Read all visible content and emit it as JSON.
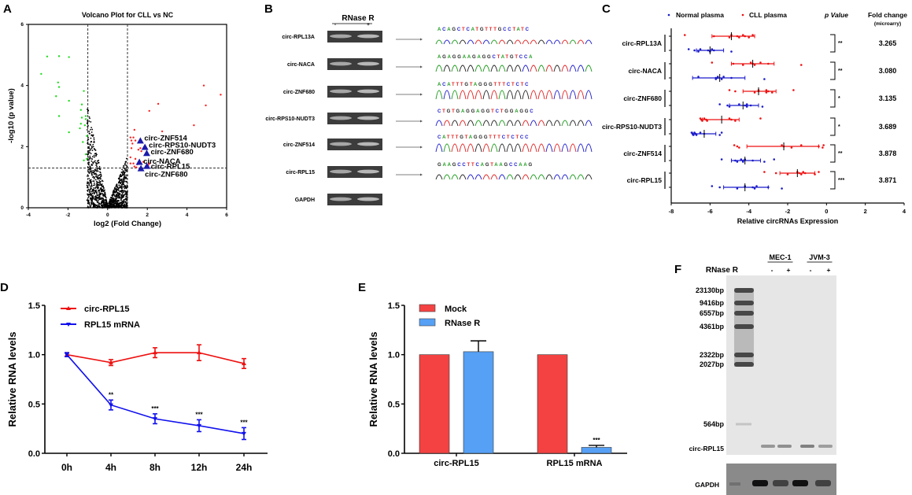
{
  "panels": {
    "A": "A",
    "B": "B",
    "C": "C",
    "D": "D",
    "E": "E",
    "F": "F"
  },
  "chart_data": [
    {
      "id": "A",
      "type": "scatter",
      "title": "Volcano Plot for CLL vs NC",
      "xlabel": "log2 (Fold Change)",
      "ylabel": "-log10 (p value)",
      "xlim": [
        -4,
        6
      ],
      "ylim": [
        0,
        6
      ],
      "xticks": [
        "-4",
        "-2",
        "0",
        "2",
        "4",
        "6"
      ],
      "yticks": [
        "0",
        "2",
        "4",
        "6"
      ],
      "thresholds": {
        "fold_change_log2": [
          -1,
          1
        ],
        "neg_log10_p": 1.3
      },
      "down_points": [
        [
          -3.05,
          4.95
        ],
        [
          -2.45,
          4.96
        ],
        [
          -1.95,
          4.93
        ],
        [
          -3.35,
          4.38
        ],
        [
          -2.5,
          4.1
        ],
        [
          -2.45,
          3.95
        ],
        [
          -2.6,
          3.65
        ],
        [
          -1.95,
          3.5
        ],
        [
          -2.45,
          3.0
        ],
        [
          -1.95,
          2.47
        ],
        [
          -1.2,
          3.82
        ],
        [
          -1.3,
          3.38
        ],
        [
          -1.35,
          3.2
        ],
        [
          -1.1,
          3.0
        ],
        [
          -1.3,
          2.95
        ],
        [
          -1.1,
          2.9
        ],
        [
          -1.35,
          2.75
        ],
        [
          -1.4,
          2.6
        ],
        [
          -1.15,
          2.7
        ],
        [
          -1.25,
          2.15
        ],
        [
          -1.05,
          2.35
        ],
        [
          -1.1,
          1.75
        ],
        [
          -1.2,
          1.55
        ],
        [
          -1.05,
          1.6
        ]
      ],
      "up_points": [
        [
          4.85,
          4.0
        ],
        [
          5.7,
          3.7
        ],
        [
          4.95,
          3.35
        ],
        [
          2.55,
          3.4
        ],
        [
          2.1,
          3.17
        ],
        [
          4.35,
          2.7
        ],
        [
          2.75,
          2.5
        ],
        [
          1.35,
          2.55
        ],
        [
          1.15,
          2.3
        ],
        [
          1.3,
          2.3
        ],
        [
          1.2,
          2.2
        ],
        [
          1.4,
          2.2
        ],
        [
          1.25,
          2.1
        ],
        [
          1.2,
          1.95
        ],
        [
          1.65,
          1.95
        ],
        [
          1.55,
          1.9
        ],
        [
          1.7,
          1.85
        ],
        [
          1.15,
          1.65
        ],
        [
          1.4,
          1.6
        ],
        [
          1.15,
          1.45
        ],
        [
          1.3,
          1.45
        ],
        [
          1.5,
          1.42
        ],
        [
          1.35,
          1.35
        ],
        [
          1.45,
          1.32
        ],
        [
          1.65,
          1.45
        ],
        [
          1.8,
          1.5
        ],
        [
          2.1,
          1.45
        ],
        [
          2.05,
          1.4
        ]
      ],
      "highlighted": [
        {
          "label": "circ-ZNF514",
          "x": 1.65,
          "y": 2.18
        },
        {
          "label": "circ-RPS10-NUDT3",
          "x": 1.88,
          "y": 1.97
        },
        {
          "label": "circ-ZNF680",
          "x": 1.97,
          "y": 1.77
        },
        {
          "label": "circ-NACA",
          "x": 1.6,
          "y": 1.48
        },
        {
          "label": "circ-RPL15",
          "x": 1.98,
          "y": 1.35
        },
        {
          "label": "circ-ZNF680",
          "x": 1.68,
          "y": 1.27
        }
      ],
      "colors": {
        "down": "#22dd22",
        "up": "#ff2020",
        "ns": "#000000",
        "highlight": "#1a1aaa"
      }
    },
    {
      "id": "C",
      "type": "scatter",
      "xlabel": "Relative circRNAs Expression",
      "xlim": [
        -8,
        4
      ],
      "xticks": [
        "-8",
        "-6",
        "-4",
        "-2",
        "0",
        "2",
        "4"
      ],
      "legend": [
        {
          "name": "Normal plasma",
          "color": "#1a1acc"
        },
        {
          "name": "CLL plasma",
          "color": "#ee1111"
        }
      ],
      "header_p": "p Value",
      "header_fc": "Fold change",
      "header_fc_sub": "(microarry)",
      "rows": [
        {
          "label": "circ-RPL13A",
          "p": "**",
          "fc": "3.265",
          "cll": {
            "mean": -4.9,
            "lo": -5.9,
            "hi": -3.7,
            "points": [
              -7.3,
              -5.8,
              -5.0,
              -4.9,
              -4.6,
              -4.5,
              -4.3,
              -4.2,
              -4.0,
              -3.8
            ]
          },
          "normal": {
            "mean": -6.0,
            "lo": -6.7,
            "hi": -5.3,
            "points": [
              -7.1,
              -6.8,
              -6.6,
              -6.5,
              -6.1,
              -6.0,
              -5.9,
              -5.8,
              -4.9
            ]
          }
        },
        {
          "label": "circ-NACA",
          "p": "**",
          "fc": "3.080",
          "cll": {
            "mean": -3.8,
            "lo": -4.9,
            "hi": -2.7,
            "points": [
              -5.9,
              -4.8,
              -4.3,
              -3.9,
              -3.8,
              -3.7,
              -3.4,
              -3.0,
              -1.3
            ]
          },
          "normal": {
            "mean": -5.5,
            "lo": -6.9,
            "hi": -4.2,
            "points": [
              -6.6,
              -5.7,
              -5.7,
              -5.6,
              -5.6,
              -5.4,
              -5.3,
              -4.9,
              -3.2
            ]
          }
        },
        {
          "label": "circ-ZNF680",
          "p": "*",
          "fc": "3.135",
          "cll": {
            "mean": -3.5,
            "lo": -4.3,
            "hi": -2.6,
            "points": [
              -5.0,
              -4.7,
              -3.7,
              -3.5,
              -3.5,
              -3.1,
              -3.1,
              -3.0,
              -2.8,
              -1.7
            ]
          },
          "normal": {
            "mean": -4.3,
            "lo": -5.0,
            "hi": -3.5,
            "points": [
              -5.5,
              -5.1,
              -5.0,
              -4.5,
              -4.2,
              -4.1,
              -4.1,
              -3.9,
              -3.3
            ]
          }
        },
        {
          "label": "circ-RPS10-NUDT3",
          "p": "*",
          "fc": "3.689",
          "cll": {
            "mean": -5.4,
            "lo": -6.4,
            "hi": -4.5,
            "points": [
              -6.5,
              -6.45,
              -6.4,
              -6.3,
              -6.2,
              -6.15,
              -5.0,
              -4.9,
              -4.7,
              -3.4
            ]
          },
          "normal": {
            "mean": -6.3,
            "lo": -6.9,
            "hi": -5.7,
            "points": [
              -6.95,
              -6.9,
              -6.85,
              -6.8,
              -6.75,
              -6.7,
              -6.5,
              -6.3,
              -5.5,
              -5.4
            ]
          }
        },
        {
          "label": "circ-ZNF514",
          "p": "**",
          "fc": "3.878",
          "cll": {
            "mean": -2.2,
            "lo": -4.1,
            "hi": -0.4,
            "points": [
              -4.75,
              -4.6,
              -4.5,
              -2.3,
              -2.2,
              -1.8,
              -1.3,
              -0.4,
              -0.2,
              -0.15
            ]
          },
          "normal": {
            "mean": -4.2,
            "lo": -4.9,
            "hi": -3.4,
            "points": [
              -5.4,
              -4.7,
              -4.6,
              -4.4,
              -4.3,
              -4.3,
              -4.2,
              -3.8,
              -3.2,
              -2.7
            ]
          }
        },
        {
          "label": "circ-RPL15",
          "p": "***",
          "fc": "3.871",
          "cll": {
            "mean": -1.5,
            "lo": -2.4,
            "hi": -0.6,
            "points": [
              -3.2,
              -2.6,
              -2.0,
              -1.5,
              -1.4,
              -1.3,
              -1.2,
              -1.1,
              -0.6,
              -0.4
            ]
          },
          "normal": {
            "mean": -4.2,
            "lo": -5.3,
            "hi": -3.0,
            "points": [
              -5.9,
              -5.5,
              -4.6,
              -4.2,
              -3.8,
              -3.7,
              -3.6,
              -3.0,
              -2.3
            ]
          }
        }
      ]
    },
    {
      "id": "D",
      "type": "line",
      "ylabel": "Relative RNA levels",
      "ylim": [
        0,
        1.5
      ],
      "yticks": [
        "0.0",
        "0.5",
        "1.0",
        "1.5"
      ],
      "categories": [
        "0h",
        "4h",
        "8h",
        "12h",
        "24h"
      ],
      "series": [
        {
          "name": "circ-RPL15",
          "color": "#ee1111",
          "marker": "triangle-up",
          "values": [
            1.0,
            0.92,
            1.02,
            1.02,
            0.91
          ],
          "errors": [
            0.02,
            0.03,
            0.05,
            0.08,
            0.05
          ],
          "sig": [
            "",
            "",
            "",
            "",
            ""
          ]
        },
        {
          "name": "RPL15 mRNA",
          "color": "#1111ee",
          "marker": "triangle-down",
          "values": [
            1.0,
            0.49,
            0.35,
            0.28,
            0.2
          ],
          "errors": [
            0.02,
            0.05,
            0.05,
            0.06,
            0.06
          ],
          "sig": [
            "",
            "**",
            "***",
            "***",
            "***"
          ]
        }
      ]
    },
    {
      "id": "E",
      "type": "bar",
      "ylabel": "Relative RNA levels",
      "ylim": [
        0,
        1.5
      ],
      "yticks": [
        "0.0",
        "0.5",
        "1.0",
        "1.5"
      ],
      "categories": [
        "circ-RPL15",
        "RPL15 mRNA"
      ],
      "series": [
        {
          "name": "Mock",
          "color": "#f44242",
          "values": [
            1.0,
            1.0
          ],
          "errors": [
            0,
            0
          ]
        },
        {
          "name": "RNase R",
          "color": "#56a0f5",
          "values": [
            1.03,
            0.06
          ],
          "errors": [
            0.11,
            0.02
          ]
        }
      ],
      "sig": [
        "",
        "***"
      ]
    }
  ],
  "panel_b": {
    "header": "RNase R",
    "lane_marks": [
      "-",
      "+"
    ],
    "rows": [
      {
        "label": "circ-RPL13A",
        "seq": "ACAGCTCATGTTTGCCTATC"
      },
      {
        "label": "circ-NACA",
        "seq": "AGAGGAAGAGGCTATGTCCA"
      },
      {
        "label": "circ-ZNF680",
        "seq": "ACATTTGTAGGGTTTCTCTC"
      },
      {
        "label": "circ-RPS10-NUDT3",
        "seq": "CTGTGAGGAGGTCTGGAGGC"
      },
      {
        "label": "circ-ZNF514",
        "seq": "CATTTGTAGGGTTTCTCTCC"
      },
      {
        "label": "circ-RPL15",
        "seq": "GAAGCCTTCAGTAAGCCAAG"
      },
      {
        "label": "GAPDH",
        "seq": ""
      }
    ]
  },
  "panel_f": {
    "rnase_label": "RNase R",
    "groups": [
      {
        "name": "MEC-1",
        "lanes": [
          "-",
          "+"
        ]
      },
      {
        "name": "JVM-3",
        "lanes": [
          "-",
          "+"
        ]
      }
    ],
    "markers": [
      "23130bp",
      "9416bp",
      "6557bp",
      "4361bp",
      "2322bp",
      "2027bp",
      "564bp"
    ],
    "band_label": "circ-RPL15",
    "control_label": "GAPDH"
  }
}
